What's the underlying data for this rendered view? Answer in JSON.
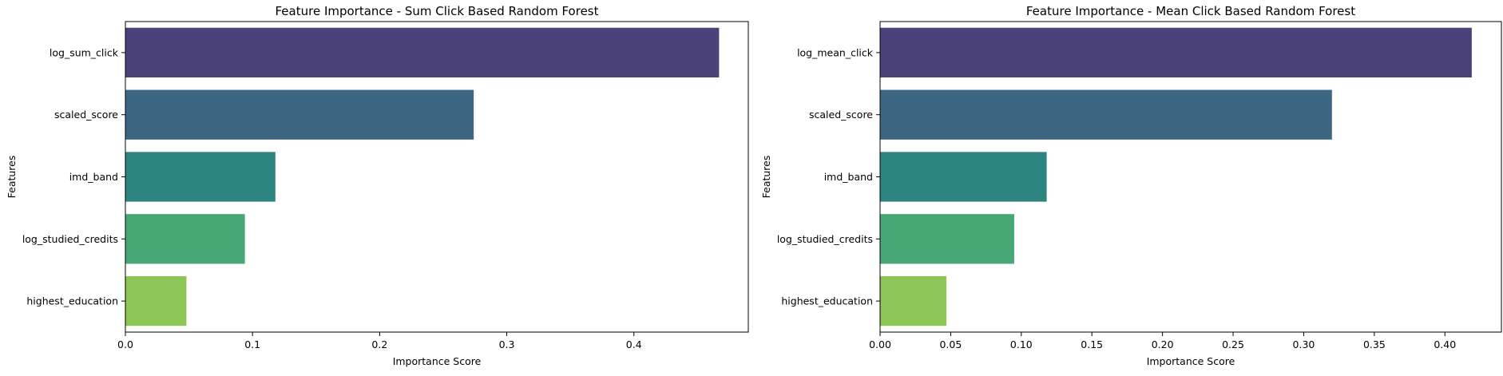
{
  "chart_data": [
    {
      "type": "bar",
      "orientation": "horizontal",
      "title": "Feature Importance - Sum Click Based Random Forest",
      "xlabel": "Importance Score",
      "ylabel": "Features",
      "categories": [
        "log_sum_click",
        "scaled_score",
        "imd_band",
        "log_studied_credits",
        "highest_education"
      ],
      "values": [
        0.467,
        0.274,
        0.118,
        0.094,
        0.048
      ],
      "colors": [
        "#4b417b",
        "#3d6683",
        "#2d8480",
        "#47a876",
        "#8dc556"
      ],
      "xlim": [
        0,
        0.49
      ],
      "xticks": [
        0.0,
        0.1,
        0.2,
        0.3,
        0.4
      ],
      "xtick_labels": [
        "0.0",
        "0.1",
        "0.2",
        "0.3",
        "0.4"
      ],
      "grid": false,
      "legend": "none"
    },
    {
      "type": "bar",
      "orientation": "horizontal",
      "title": "Feature Importance - Mean Click Based Random Forest",
      "xlabel": "Importance Score",
      "ylabel": "Features",
      "categories": [
        "log_mean_click",
        "scaled_score",
        "imd_band",
        "log_studied_credits",
        "highest_education"
      ],
      "values": [
        0.419,
        0.32,
        0.118,
        0.095,
        0.047
      ],
      "colors": [
        "#4b417b",
        "#3d6683",
        "#2d8480",
        "#47a876",
        "#8dc556"
      ],
      "xlim": [
        0,
        0.44
      ],
      "xticks": [
        0.0,
        0.05,
        0.1,
        0.15,
        0.2,
        0.25,
        0.3,
        0.35,
        0.4
      ],
      "xtick_labels": [
        "0.00",
        "0.05",
        "0.10",
        "0.15",
        "0.20",
        "0.25",
        "0.30",
        "0.35",
        "0.40"
      ],
      "grid": false,
      "legend": "none"
    }
  ]
}
